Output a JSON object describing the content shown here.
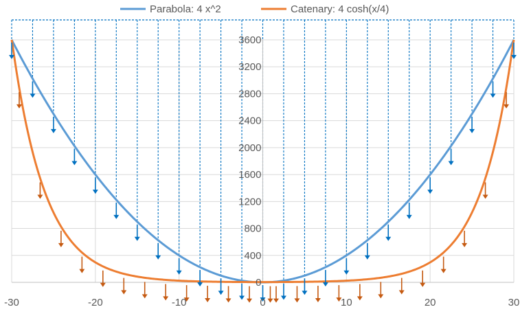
{
  "chart_data": {
    "type": "line",
    "title": "",
    "xlabel": "",
    "ylabel": "",
    "xlim": [
      -30,
      30
    ],
    "ylim": [
      0,
      3600
    ],
    "x_ticks": [
      -30,
      -20,
      -10,
      0,
      10,
      20,
      30
    ],
    "x_tick_labels": [
      "-30",
      "-20",
      "-10",
      "0",
      "10",
      "20",
      "30"
    ],
    "y_ticks": [
      0,
      400,
      800,
      1200,
      1600,
      2000,
      2400,
      2800,
      3200,
      3600
    ],
    "y_tick_labels": [
      "0",
      "400",
      "800",
      "1200",
      "1600",
      "2000",
      "2400",
      "2800",
      "3200",
      "3600"
    ],
    "grid": true,
    "legend_position": "top",
    "series": [
      {
        "name": "Parabola: 4 x^2",
        "function": "4*x^2",
        "color": "#5B9BD5",
        "load_arrows": {
          "color": "#0070C0",
          "x_step": 2.5
        },
        "x": [
          -30,
          -25,
          -20,
          -15,
          -10,
          -5,
          0,
          5,
          10,
          15,
          20,
          25,
          30
        ],
        "values": [
          3600,
          2500,
          1600,
          900,
          400,
          100,
          0,
          100,
          400,
          900,
          1600,
          2500,
          3600
        ]
      },
      {
        "name": "Catenary: 4 cosh(x/4)",
        "function": "4*cosh(x/4)",
        "color": "#ED7D31",
        "load_arrows": {
          "color": "#C55A11",
          "x_step": 2.5
        },
        "x": [
          -30,
          -25,
          -20,
          -15,
          -10,
          -5,
          0,
          5,
          10,
          15,
          20,
          25,
          30
        ],
        "values": [
          3616,
          1036,
          297,
          85,
          25,
          8,
          4,
          8,
          25,
          85,
          297,
          1036,
          3616
        ]
      }
    ]
  }
}
